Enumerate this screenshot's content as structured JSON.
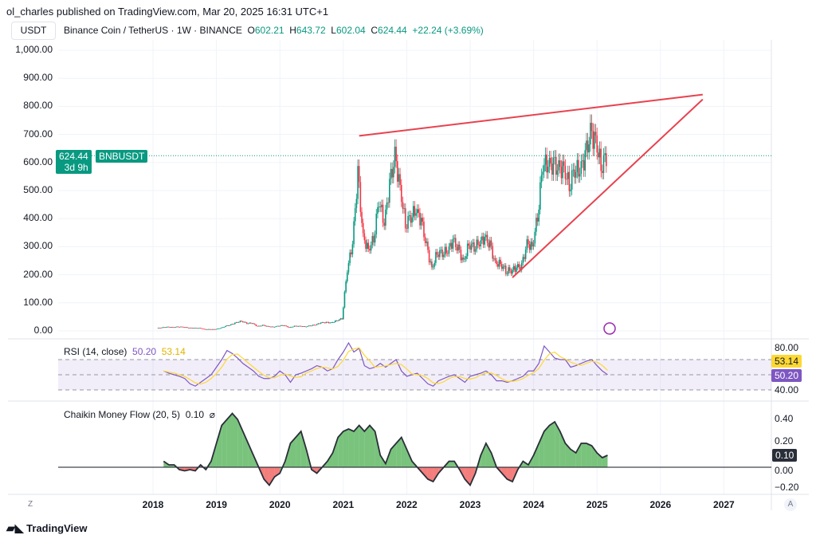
{
  "publish_line": "ol_charles published on TradingView.com, Mar 20, 2025 16:31 UTC+1",
  "currency_button": "USDT",
  "symbol_line": "Binance Coin / TetherUS · 1W · BINANCE",
  "ohlc": {
    "o_label": "O",
    "o": "602.21",
    "h_label": "H",
    "h": "643.72",
    "l_label": "L",
    "l": "602.04",
    "c_label": "C",
    "c": "624.44",
    "change": "+22.24 (+3.69%)"
  },
  "price_tag": {
    "price": "624.44",
    "countdown": "3d 9h",
    "symbol": "BNBUSDT"
  },
  "rsi": {
    "title": "RSI (14, close)",
    "value": "50.20",
    "ma_value": "53.14",
    "axis": [
      "80.00",
      "40.00"
    ]
  },
  "cmf": {
    "title": "Chaikin Money Flow (20, 5)",
    "value": "0.10",
    "settings_glyph": "⌀",
    "axis": [
      "0.40",
      "0.20",
      "0.00",
      "−0.20"
    ]
  },
  "price_axis": [
    "1,000.00",
    "900.00",
    "800.00",
    "700.00",
    "600.00",
    "500.00",
    "400.00",
    "300.00",
    "200.00",
    "100.00",
    "0.00"
  ],
  "years": [
    "2018",
    "2019",
    "2020",
    "2021",
    "2022",
    "2023",
    "2024",
    "2025",
    "2026",
    "2027"
  ],
  "corner_left": "Z",
  "corner_right": "A",
  "logo_text": "TradingView",
  "colors": {
    "up": "#089981",
    "down": "#f23645",
    "trendline": "#e8424f",
    "rsi": "#7e57c2",
    "rsi_ma": "#fdd835",
    "cmf_pos": "#4caf50",
    "cmf_neg": "#ef5350"
  },
  "chart_data": [
    {
      "type": "candlestick",
      "title": "Binance Coin / TetherUS · 1W · BINANCE",
      "ylim": [
        0,
        1000
      ],
      "start": "2018-02",
      "interval": "month (approximate)",
      "closes": [
        10,
        12,
        14,
        13,
        15,
        14,
        11,
        10,
        10,
        6,
        6,
        6,
        10,
        17,
        22,
        30,
        35,
        27,
        28,
        16,
        20,
        16,
        14,
        18,
        20,
        12,
        17,
        17,
        15,
        19,
        22,
        29,
        30,
        29,
        37,
        44,
        220,
        310,
        560,
        330,
        290,
        330,
        470,
        380,
        520,
        620,
        510,
        380,
        410,
        430,
        390,
        300,
        220,
        280,
        280,
        285,
        320,
        290,
        245,
        310,
        300,
        315,
        330,
        305,
        240,
        240,
        215,
        215,
        225,
        230,
        310,
        300,
        410,
        600,
        590,
        590,
        575,
        580,
        520,
        580,
        570,
        620,
        700,
        680,
        590,
        624.44
      ],
      "last_price": 624.44,
      "trendlines": [
        {
          "from": [
            "2021-04",
            695
          ],
          "to": [
            "2026-09",
            842
          ]
        },
        {
          "from": [
            "2023-09",
            190
          ],
          "to": [
            "2026-09",
            825
          ]
        }
      ]
    },
    {
      "type": "line",
      "title": "RSI (14, close)",
      "ylim": [
        20,
        100
      ],
      "bands": [
        30,
        50,
        70
      ],
      "start": "2018-03",
      "values": [
        55,
        52,
        50,
        48,
        45,
        38,
        35,
        40,
        45,
        50,
        60,
        70,
        82,
        78,
        72,
        65,
        60,
        55,
        48,
        45,
        45,
        48,
        55,
        50,
        40,
        50,
        52,
        55,
        58,
        62,
        60,
        55,
        58,
        70,
        80,
        92,
        80,
        85,
        62,
        58,
        60,
        65,
        60,
        65,
        70,
        55,
        48,
        50,
        52,
        45,
        38,
        35,
        42,
        45,
        48,
        50,
        45,
        40,
        48,
        50,
        52,
        55,
        50,
        42,
        42,
        40,
        42,
        45,
        48,
        55,
        55,
        65,
        88,
        80,
        72,
        70,
        70,
        60,
        62,
        65,
        68,
        70,
        62,
        55,
        50.2
      ]
    },
    {
      "type": "area",
      "title": "Chaikin Money Flow (20, 5)",
      "ylim": [
        -0.27,
        0.6
      ],
      "start": "2018-03",
      "values": [
        0.05,
        0.02,
        0.02,
        -0.02,
        -0.03,
        -0.02,
        -0.03,
        0.02,
        -0.02,
        0.05,
        0.2,
        0.35,
        0.4,
        0.45,
        0.4,
        0.3,
        0.2,
        0.1,
        0.0,
        -0.1,
        -0.15,
        -0.08,
        -0.05,
        0.05,
        0.2,
        0.25,
        0.3,
        0.15,
        -0.02,
        -0.05,
        0.0,
        0.05,
        0.12,
        0.25,
        0.3,
        0.32,
        0.3,
        0.35,
        0.3,
        0.35,
        0.3,
        0.1,
        0.03,
        0.15,
        0.2,
        0.25,
        0.15,
        0.05,
        0.0,
        -0.05,
        -0.1,
        -0.12,
        -0.05,
        0.0,
        0.05,
        0.05,
        -0.02,
        -0.1,
        -0.15,
        -0.05,
        0.1,
        0.2,
        0.12,
        0.0,
        -0.05,
        -0.1,
        -0.12,
        -0.02,
        0.05,
        0.02,
        0.1,
        0.2,
        0.3,
        0.35,
        0.38,
        0.3,
        0.2,
        0.15,
        0.12,
        0.2,
        0.2,
        0.18,
        0.12,
        0.08,
        0.1
      ]
    }
  ]
}
